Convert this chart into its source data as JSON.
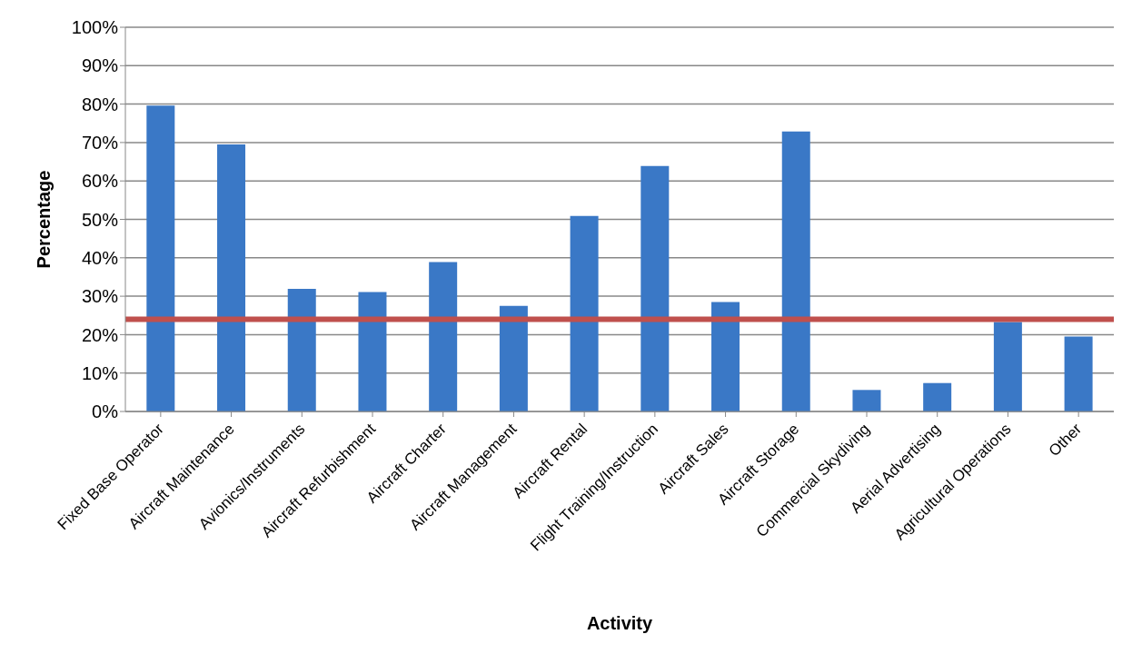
{
  "chart_data": {
    "type": "bar",
    "xlabel": "Activity",
    "ylabel": "Percentage",
    "categories": [
      "Fixed Base Operator",
      "Aircraft Maintenance",
      "Avionics/Instruments",
      "Aircraft Refurbishment",
      "Aircraft Charter",
      "Aircraft Management",
      "Aircraft Rental",
      "Flight Training/Instruction",
      "Aircraft Sales",
      "Aircraft Storage",
      "Commercial Skydiving",
      "Aerial Advertising",
      "Agricultural Operations",
      "Other"
    ],
    "values": [
      79.6,
      69.5,
      31.9,
      31.1,
      38.9,
      27.5,
      50.9,
      63.9,
      28.5,
      72.9,
      5.6,
      7.4,
      23.3,
      19.5
    ],
    "color": "#3a78c6",
    "ylim": [
      0,
      100
    ],
    "yticks": [
      {
        "value": 0,
        "label": "0%"
      },
      {
        "value": 10,
        "label": "10%"
      },
      {
        "value": 20,
        "label": "20%"
      },
      {
        "value": 30,
        "label": "30%"
      },
      {
        "value": 40,
        "label": "40%"
      },
      {
        "value": 50,
        "label": "50%"
      },
      {
        "value": 60,
        "label": "60%"
      },
      {
        "value": 70,
        "label": "70%"
      },
      {
        "value": 80,
        "label": "80%"
      },
      {
        "value": 90,
        "label": "90%"
      },
      {
        "value": 100,
        "label": "100%"
      }
    ],
    "grid": "y",
    "ref_lines": [
      {
        "axis": "y",
        "value": 24,
        "color": "#c0504d"
      }
    ]
  }
}
